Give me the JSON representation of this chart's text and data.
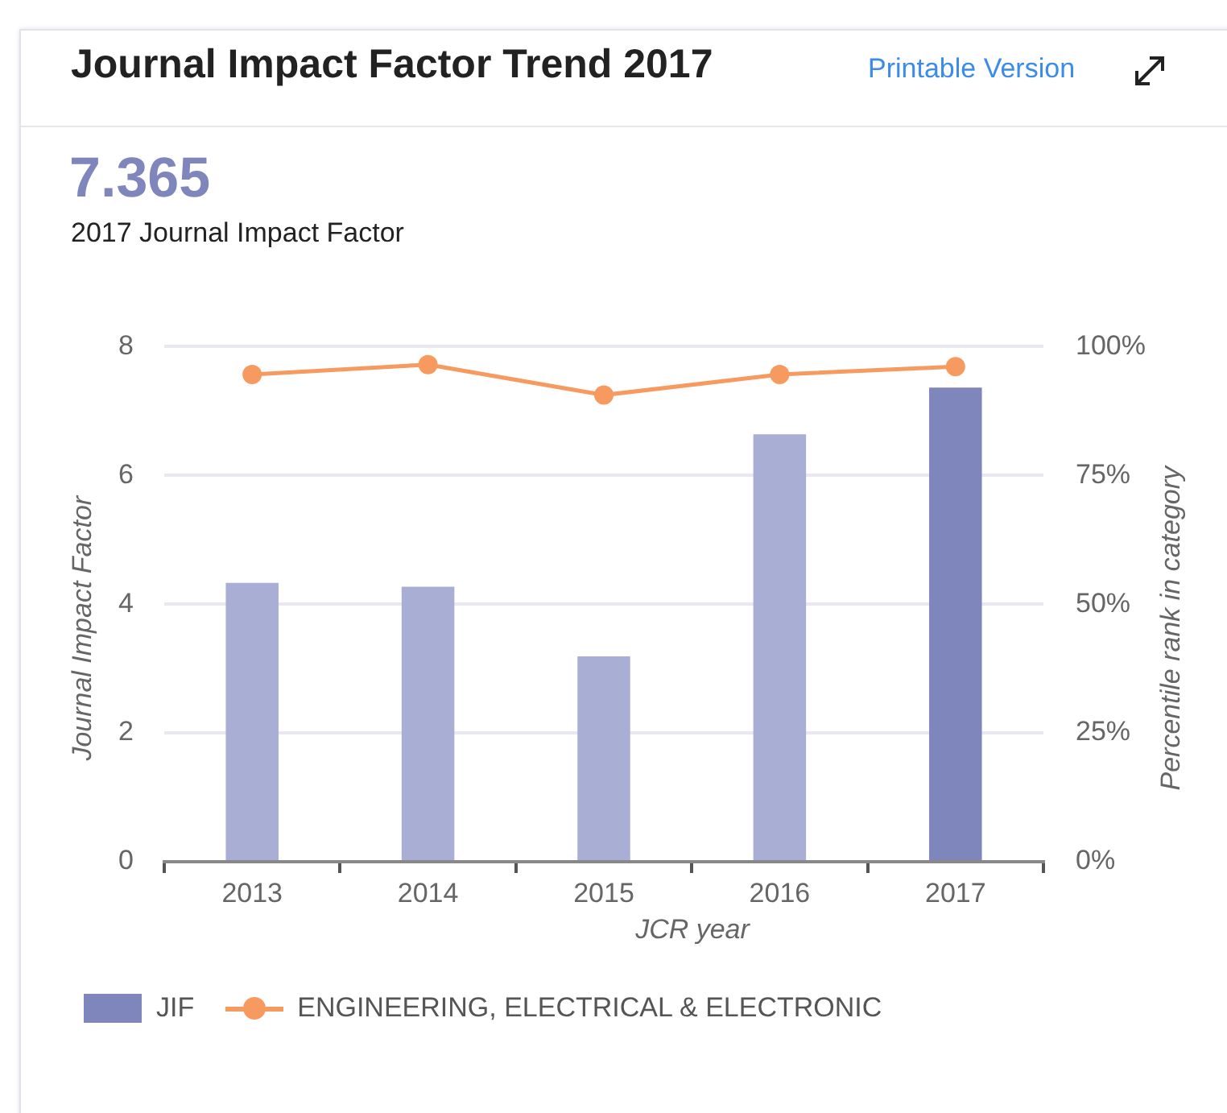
{
  "chart_data": {
    "type": "bar",
    "title": "Journal Impact Factor Trend 2017",
    "subtitle": "2017 Journal Impact Factor",
    "annotations": [
      "Printable Version",
      "7.365"
    ],
    "xlabel": "JCR year",
    "ylabel": "Journal Impact Factor",
    "y2label": "Percentile rank in category",
    "categories": [
      "2013",
      "2014",
      "2015",
      "2016",
      "2017"
    ],
    "series": [
      {
        "name": "JIF",
        "color": "#7f86bb",
        "colors": [
          "#a9afd4",
          "#a9afd4",
          "#a9afd4",
          "#a9afd4",
          "#7f86bb"
        ],
        "values": [
          4.33,
          4.27,
          3.19,
          6.64,
          7.365
        ]
      },
      {
        "name": "ENGINEERING, ELECTRICAL & ELECTRONIC",
        "type": "line",
        "axis": "y2",
        "color": "#f79a5f",
        "values": [
          94.6,
          96.5,
          90.6,
          94.6,
          96.1
        ]
      }
    ],
    "ylim": [
      0,
      8
    ],
    "yticks": [
      0,
      2,
      4,
      6,
      8
    ],
    "y2lim": [
      0,
      100
    ],
    "y2ticks": [
      {
        "value": 0,
        "label": "0%"
      },
      {
        "value": 25,
        "label": "25%"
      },
      {
        "value": 50,
        "label": "50%"
      },
      {
        "value": 75,
        "label": "75%"
      },
      {
        "value": 100,
        "label": "100%"
      }
    ],
    "grid": "y",
    "legend": "bottom left",
    "marker": "circle",
    "line_style": "solid"
  }
}
